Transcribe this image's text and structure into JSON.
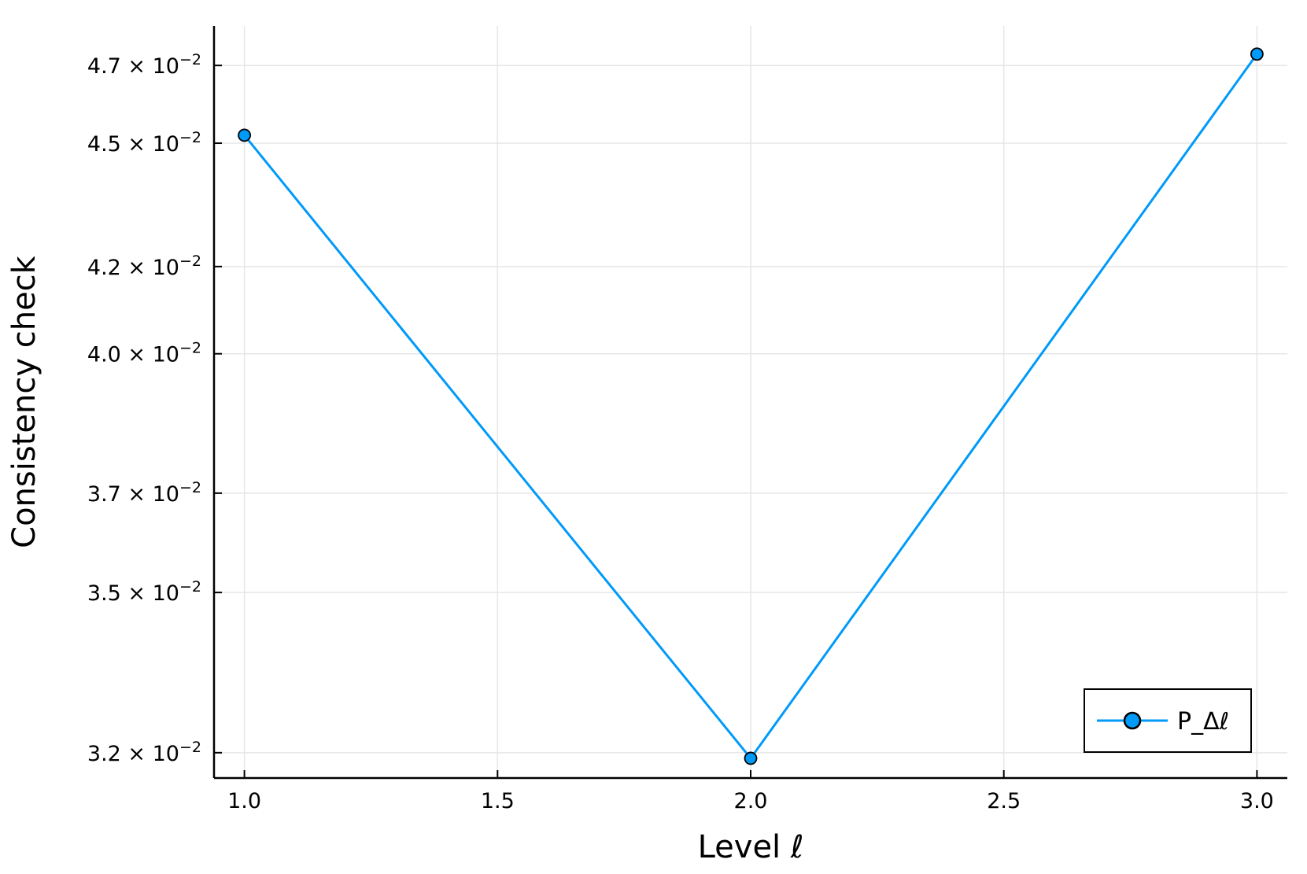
{
  "chart_data": {
    "type": "line",
    "title": "",
    "xlabel": "Level ℓ",
    "ylabel": "Consistency check",
    "x": [
      1.0,
      2.0,
      3.0
    ],
    "series": [
      {
        "name": "P_Δℓ",
        "values": [
          0.0452,
          0.0319,
          0.0473
        ],
        "color": "#009af9",
        "marker": "circle"
      }
    ],
    "xlim": [
      0.94,
      3.06
    ],
    "ylim": [
      0.03155,
      0.04805
    ],
    "x_ticks": [
      {
        "value": 1.0,
        "label": "1.0"
      },
      {
        "value": 1.5,
        "label": "1.5"
      },
      {
        "value": 2.0,
        "label": "2.0"
      },
      {
        "value": 2.5,
        "label": "2.5"
      },
      {
        "value": 3.0,
        "label": "3.0"
      }
    ],
    "y_ticks": [
      {
        "value": 0.032,
        "mantissa": "3.2",
        "base": " × 10",
        "exponent": "−2"
      },
      {
        "value": 0.035,
        "mantissa": "3.5",
        "base": " × 10",
        "exponent": "−2"
      },
      {
        "value": 0.037,
        "mantissa": "3.7",
        "base": " × 10",
        "exponent": "−2"
      },
      {
        "value": 0.04,
        "mantissa": "4.0",
        "base": " × 10",
        "exponent": "−2"
      },
      {
        "value": 0.042,
        "mantissa": "4.2",
        "base": " × 10",
        "exponent": "−2"
      },
      {
        "value": 0.045,
        "mantissa": "4.5",
        "base": " × 10",
        "exponent": "−2"
      },
      {
        "value": 0.047,
        "mantissa": "4.7",
        "base": " × 10",
        "exponent": "−2"
      }
    ],
    "y_scale": "log",
    "grid": true,
    "legend_position": "bottom-right"
  }
}
